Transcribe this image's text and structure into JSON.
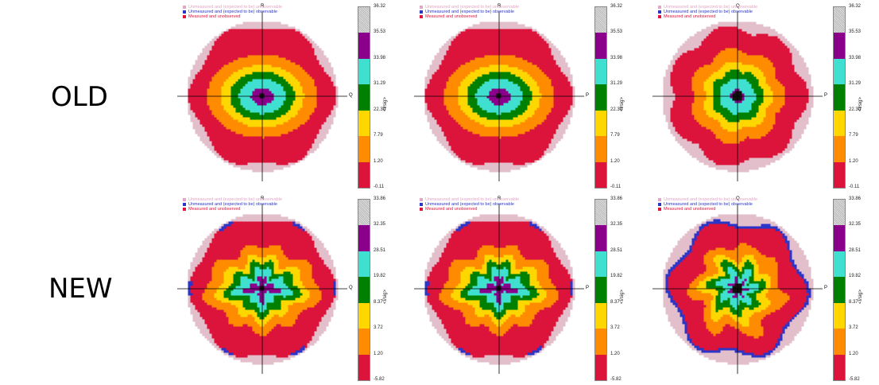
{
  "rows": [
    {
      "label": "OLD"
    },
    {
      "label": "NEW"
    }
  ],
  "legend": {
    "entries": [
      {
        "text": "Unmeasured and (expected to be) unobservable",
        "color": "#e3a6c6"
      },
      {
        "text": "Unmeasured and (expected to be) observable",
        "color": "#2b35c8"
      },
      {
        "text": "Measured and unobserved",
        "color": "#e0153c"
      }
    ]
  },
  "colorbar_title": "<I/sig>",
  "colors": {
    "bands": [
      "#dc143c",
      "#ff8c00",
      "#ffd700",
      "#008000",
      "#40e0d0",
      "#8b008b",
      "#c8c8c8"
    ],
    "unobservable": "#e3bfcc",
    "observable": "#2b35c8",
    "center": "#111111"
  },
  "chart_data": [
    {
      "type": "heatmap",
      "row": "OLD",
      "axes": {
        "vertical": "R",
        "horizontal": "Q"
      },
      "colorbar_ticks": [
        "36.32",
        "35.53",
        "33.98",
        "31.29",
        "22.30",
        "7.79",
        "1.20",
        "-0.11"
      ]
    },
    {
      "type": "heatmap",
      "row": "OLD",
      "axes": {
        "vertical": "R",
        "horizontal": "P"
      },
      "colorbar_ticks": [
        "36.32",
        "35.53",
        "33.98",
        "31.29",
        "22.30",
        "7.79",
        "1.20",
        "-0.11"
      ]
    },
    {
      "type": "heatmap",
      "row": "OLD",
      "axes": {
        "vertical": "Q",
        "horizontal": "P"
      },
      "colorbar_ticks": [
        "36.32",
        "35.53",
        "33.98",
        "31.29",
        "22.30",
        "7.79",
        "1.20",
        "-0.11"
      ]
    },
    {
      "type": "heatmap",
      "row": "NEW",
      "axes": {
        "vertical": "R",
        "horizontal": "Q"
      },
      "colorbar_ticks": [
        "33.86",
        "32.35",
        "28.51",
        "19.82",
        "8.37",
        "3.72",
        "1.20",
        "-5.82"
      ]
    },
    {
      "type": "heatmap",
      "row": "NEW",
      "axes": {
        "vertical": "R",
        "horizontal": "P"
      },
      "colorbar_ticks": [
        "33.86",
        "32.35",
        "28.51",
        "19.82",
        "8.37",
        "3.72",
        "1.20",
        "-5.82"
      ]
    },
    {
      "type": "heatmap",
      "row": "NEW",
      "axes": {
        "vertical": "Q",
        "horizontal": "P"
      },
      "colorbar_ticks": [
        "33.86",
        "32.35",
        "28.51",
        "19.82",
        "8.37",
        "3.72",
        "1.20",
        "-5.82"
      ]
    }
  ]
}
